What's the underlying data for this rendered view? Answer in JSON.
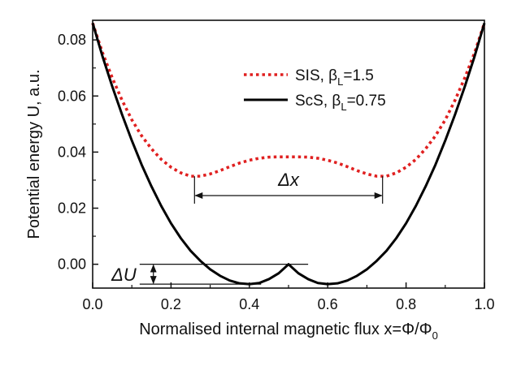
{
  "chart_data": {
    "type": "line",
    "xlabel": "Normalised internal magnetic flux x=Φ/Φ",
    "xlabel_sub": "0",
    "ylabel": "Potential energy U, a.u.",
    "xlim": [
      0.0,
      1.0
    ],
    "ylim": [
      -0.0085,
      0.087
    ],
    "x_ticks": [
      "0.0",
      "0.2",
      "0.4",
      "0.6",
      "0.8",
      "1.0"
    ],
    "x_tick_values": [
      0.0,
      0.2,
      0.4,
      0.6,
      0.8,
      1.0
    ],
    "y_ticks": [
      "0.00",
      "0.02",
      "0.04",
      "0.06",
      "0.08"
    ],
    "y_tick_values": [
      0.0,
      0.02,
      0.04,
      0.06,
      0.08
    ],
    "grid": false,
    "legend_position": "top-right",
    "series": [
      {
        "name": "SIS, βL=1.5",
        "label_main": "SIS, β",
        "label_sub": "L",
        "label_tail": "=1.5",
        "color": "#e02020",
        "style": "dotted",
        "x": [
          0.0,
          0.025,
          0.05,
          0.075,
          0.1,
          0.125,
          0.15,
          0.175,
          0.2,
          0.225,
          0.25,
          0.275,
          0.3,
          0.325,
          0.35,
          0.375,
          0.4,
          0.425,
          0.45,
          0.475,
          0.5,
          0.525,
          0.55,
          0.575,
          0.6,
          0.625,
          0.65,
          0.675,
          0.7,
          0.725,
          0.75,
          0.775,
          0.8,
          0.825,
          0.85,
          0.875,
          0.9,
          0.925,
          0.95,
          0.975,
          1.0
        ],
        "y": [
          0.086,
          0.0755,
          0.0665,
          0.0585,
          0.0515,
          0.0458,
          0.0412,
          0.0374,
          0.0346,
          0.0326,
          0.0314,
          0.0314,
          0.0322,
          0.0334,
          0.0348,
          0.0361,
          0.0371,
          0.0378,
          0.0382,
          0.0383,
          0.0383,
          0.0383,
          0.0382,
          0.0378,
          0.0371,
          0.0361,
          0.0348,
          0.0334,
          0.0322,
          0.0314,
          0.0314,
          0.0326,
          0.0346,
          0.0374,
          0.0412,
          0.0458,
          0.0515,
          0.0585,
          0.0665,
          0.0755,
          0.086
        ]
      },
      {
        "name": "ScS, βL=0.75",
        "label_main": "ScS, β",
        "label_sub": "L",
        "label_tail": "=0.75",
        "color": "#000000",
        "style": "solid",
        "x": [
          0.0,
          0.025,
          0.05,
          0.075,
          0.1,
          0.125,
          0.15,
          0.175,
          0.2,
          0.225,
          0.25,
          0.275,
          0.3,
          0.325,
          0.35,
          0.375,
          0.4,
          0.425,
          0.45,
          0.475,
          0.5,
          0.525,
          0.55,
          0.575,
          0.6,
          0.625,
          0.65,
          0.675,
          0.7,
          0.725,
          0.75,
          0.775,
          0.8,
          0.825,
          0.85,
          0.875,
          0.9,
          0.925,
          0.95,
          0.975,
          1.0
        ],
        "y": [
          0.086,
          0.0742,
          0.0634,
          0.0534,
          0.0441,
          0.0355,
          0.0278,
          0.0208,
          0.0146,
          0.0093,
          0.0048,
          0.0012,
          -0.0018,
          -0.0041,
          -0.0058,
          -0.0068,
          -0.0071,
          -0.0067,
          -0.0053,
          -0.0032,
          0.0,
          -0.0032,
          -0.0053,
          -0.0067,
          -0.0071,
          -0.0068,
          -0.0058,
          -0.0041,
          -0.0018,
          0.0012,
          0.0048,
          0.0093,
          0.0146,
          0.0208,
          0.0278,
          0.0355,
          0.0441,
          0.0534,
          0.0634,
          0.0742,
          0.086
        ]
      }
    ],
    "annotations": {
      "dx_label": "Δx",
      "dx_from": 0.26,
      "dx_to": 0.74,
      "dx_y": 0.0245,
      "dx_bracket_top": 0.0314,
      "du_label": "ΔU",
      "du_top": 0.0,
      "du_bottom": -0.0071,
      "du_arrow_x": 0.155,
      "du_top_line_to": 0.55,
      "du_bottom_line_to": 0.43,
      "du_line_from": 0.12
    }
  }
}
